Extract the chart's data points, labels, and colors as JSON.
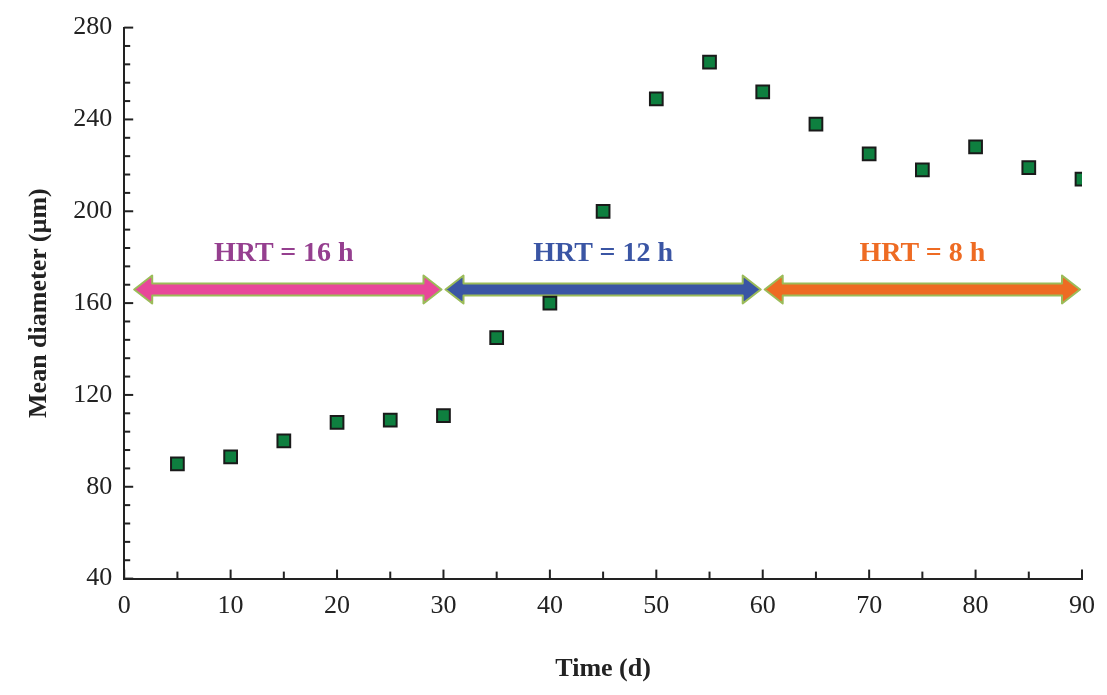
{
  "chart_data": {
    "type": "scatter",
    "xlabel": "Time (d)",
    "ylabel": "Mean diameter (µm)",
    "x": [
      5,
      10,
      15,
      20,
      25,
      30,
      35,
      40,
      45,
      50,
      55,
      60,
      65,
      70,
      75,
      80,
      85,
      90
    ],
    "series": [
      {
        "color": "#0e7f3f",
        "values": [
          90,
          93,
          100,
          108,
          109,
          111,
          145,
          160,
          200,
          249,
          265,
          252,
          238,
          225,
          218,
          228,
          219,
          214
        ]
      }
    ],
    "marker": "square",
    "legend": false,
    "grid": false,
    "xlim": [
      0,
      90
    ],
    "xticks": [
      0,
      {
        "value": 5,
        "label": null
      },
      10,
      {
        "value": 15,
        "label": null
      },
      20,
      {
        "value": 25,
        "label": null
      },
      30,
      {
        "value": 35,
        "label": null
      },
      40,
      {
        "value": 45,
        "label": null
      },
      50,
      {
        "value": 55,
        "label": null
      },
      60,
      {
        "value": 65,
        "label": null
      },
      70,
      {
        "value": 75,
        "label": null
      },
      80,
      {
        "value": 85,
        "label": null
      },
      90
    ],
    "ylim": [
      40,
      280
    ],
    "yticks": [
      40,
      {
        "value": 48,
        "label": null
      },
      {
        "value": 56,
        "label": null
      },
      {
        "value": 64,
        "label": null
      },
      {
        "value": 72,
        "label": null
      },
      80,
      {
        "value": 88,
        "label": null
      },
      {
        "value": 96,
        "label": null
      },
      {
        "value": 104,
        "label": null
      },
      {
        "value": 112,
        "label": null
      },
      120,
      {
        "value": 128,
        "label": null
      },
      {
        "value": 136,
        "label": null
      },
      {
        "value": 144,
        "label": null
      },
      {
        "value": 152,
        "label": null
      },
      160,
      {
        "value": 168,
        "label": null
      },
      {
        "value": 176,
        "label": null
      },
      {
        "value": 184,
        "label": null
      },
      {
        "value": 192,
        "label": null
      },
      200,
      {
        "value": 208,
        "label": null
      },
      {
        "value": 216,
        "label": null
      },
      {
        "value": 224,
        "label": null
      },
      {
        "value": 232,
        "label": null
      },
      240,
      {
        "value": 248,
        "label": null
      },
      {
        "value": 256,
        "label": null
      },
      {
        "value": 264,
        "label": null
      },
      {
        "value": 272,
        "label": null
      },
      280
    ],
    "annotations": [
      "HRT = 16 h",
      "HRT = 12 h",
      "HRT = 8 h"
    ]
  }
}
